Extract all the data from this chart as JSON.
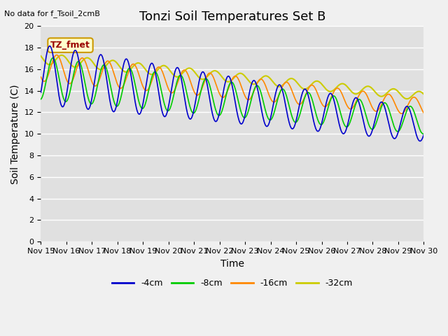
{
  "title": "Tonzi Soil Temperatures Set B",
  "no_data_text": "No data for f_Tsoil_2cmB",
  "xlabel": "Time",
  "ylabel": "Soil Temperature (C)",
  "ylim": [
    0,
    20
  ],
  "yticks": [
    0,
    2,
    4,
    6,
    8,
    10,
    12,
    14,
    16,
    18,
    20
  ],
  "xtick_labels": [
    "Nov 15",
    "Nov 16",
    "Nov 17",
    "Nov 18",
    "Nov 19",
    "Nov 20",
    "Nov 21",
    "Nov 22",
    "Nov 23",
    "Nov 24",
    "Nov 25",
    "Nov 26",
    "Nov 27",
    "Nov 28",
    "Nov 29",
    "Nov 30"
  ],
  "legend_label": "TZ_fmet",
  "legend_box_color": "#ffffcc",
  "legend_box_edge_color": "#cc9900",
  "legend_text_color": "#990000",
  "line_colors": [
    "#0000cc",
    "#00cc00",
    "#ff8800",
    "#cccc00"
  ],
  "line_labels": [
    "-4cm",
    "-8cm",
    "-16cm",
    "-32cm"
  ],
  "background_color": "#e0e0e0",
  "fig_background_color": "#f0f0f0",
  "grid_color": "#ffffff",
  "title_fontsize": 13,
  "axis_fontsize": 10,
  "tick_fontsize": 8,
  "n_days": 15,
  "n_points_per_day": 48
}
